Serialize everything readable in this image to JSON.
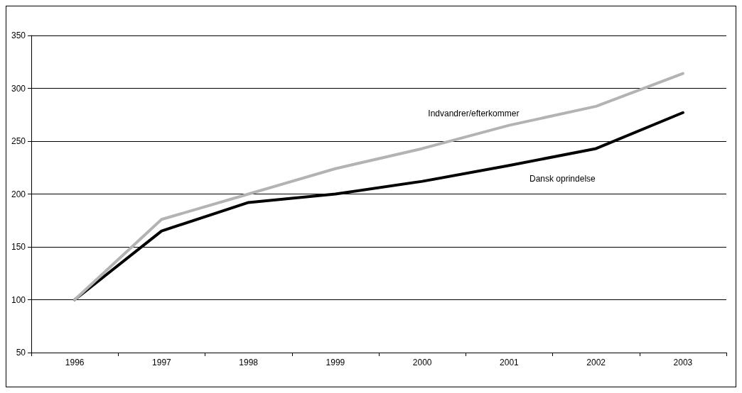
{
  "chart_data": {
    "type": "line",
    "categories": [
      "1996",
      "1997",
      "1998",
      "1999",
      "2000",
      "2001",
      "2002",
      "2003"
    ],
    "series": [
      {
        "name": "Indvandrer/efterkommer",
        "color": "#b3b3b3",
        "values": [
          100,
          176,
          200,
          224,
          243,
          265,
          283,
          314
        ]
      },
      {
        "name": "Dansk oprindelse",
        "color": "#000000",
        "values": [
          100,
          165,
          192,
          200,
          212,
          227,
          243,
          277
        ]
      }
    ],
    "ylim": [
      50,
      350
    ],
    "yticks": [
      50,
      100,
      150,
      200,
      250,
      300,
      350
    ],
    "grid": "y",
    "legend": false,
    "marker": "none",
    "line_style": "solid"
  }
}
